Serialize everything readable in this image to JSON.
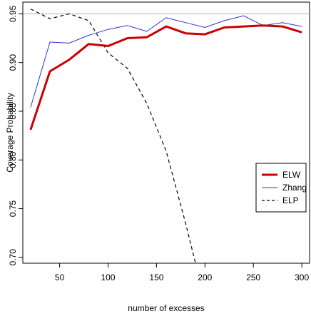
{
  "chart_data": {
    "type": "line",
    "title": "",
    "xlabel": "number of excesses",
    "ylabel": "Coverage Probability",
    "xlim": [
      12,
      308
    ],
    "ylim": [
      0.694,
      0.962
    ],
    "xticks": [
      50,
      100,
      150,
      200,
      250,
      300
    ],
    "yticks": [
      0.7,
      0.75,
      0.8,
      0.85,
      0.9,
      0.95
    ],
    "ytick_labels": [
      "0.70",
      "0.75",
      "0.80",
      "0.85",
      "0.90",
      "0.95"
    ],
    "reference_line": 0.95,
    "legend_position": "right",
    "grid": false,
    "series": [
      {
        "name": "ELW",
        "color": "#cc0000",
        "line_style": "solid-thick",
        "x": [
          20,
          40,
          60,
          80,
          100,
          120,
          140,
          160,
          180,
          200,
          220,
          240,
          260,
          280,
          300
        ],
        "y": [
          0.831,
          0.891,
          0.903,
          0.919,
          0.917,
          0.925,
          0.926,
          0.937,
          0.93,
          0.929,
          0.936,
          0.937,
          0.938,
          0.937,
          0.931
        ]
      },
      {
        "name": "Zhang",
        "color": "#3333cc",
        "line_style": "solid-thin",
        "x": [
          20,
          40,
          60,
          80,
          100,
          120,
          140,
          160,
          180,
          200,
          220,
          240,
          260,
          280,
          300
        ],
        "y": [
          0.854,
          0.921,
          0.92,
          0.928,
          0.934,
          0.938,
          0.932,
          0.946,
          0.941,
          0.936,
          0.943,
          0.948,
          0.938,
          0.941,
          0.937
        ]
      },
      {
        "name": "ELP",
        "color": "#000000",
        "line_style": "dashed",
        "x": [
          20,
          40,
          60,
          80,
          100,
          120,
          140,
          160,
          180,
          200
        ],
        "y": [
          0.955,
          0.945,
          0.95,
          0.943,
          0.91,
          0.894,
          0.858,
          0.809,
          0.735,
          0.655
        ]
      }
    ]
  }
}
